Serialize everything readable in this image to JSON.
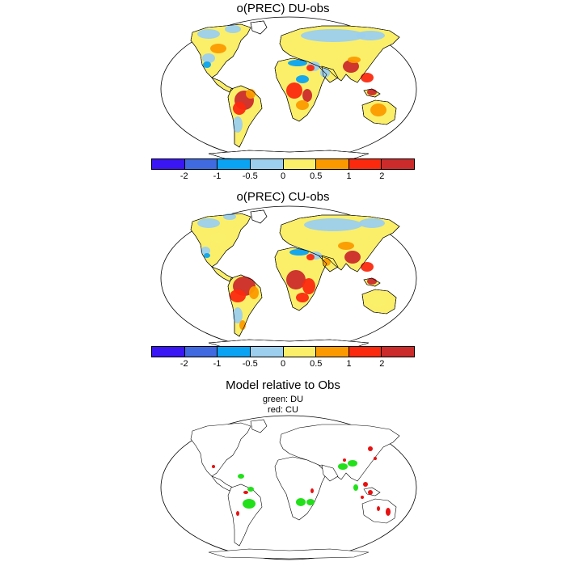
{
  "panels": [
    {
      "title": "o(PREC) DU-obs",
      "variant": "du"
    },
    {
      "title": "o(PREC) CU-obs",
      "variant": "cu"
    }
  ],
  "colorbar": {
    "colors": [
      "#3a16f5",
      "#3f6ae0",
      "#0aa3f3",
      "#9ccfee",
      "#fbef6a",
      "#fb9a00",
      "#fb2a0f",
      "#cb2b2b"
    ],
    "tick_labels": [
      "-2",
      "-1",
      "-0.5",
      "0",
      "0.5",
      "1",
      "2"
    ]
  },
  "comparison": {
    "title": "Model relative to Obs",
    "legend_line1": "green: DU",
    "legend_line2": "red: CU",
    "green_color": "#22e01a",
    "red_color": "#e81010"
  }
}
